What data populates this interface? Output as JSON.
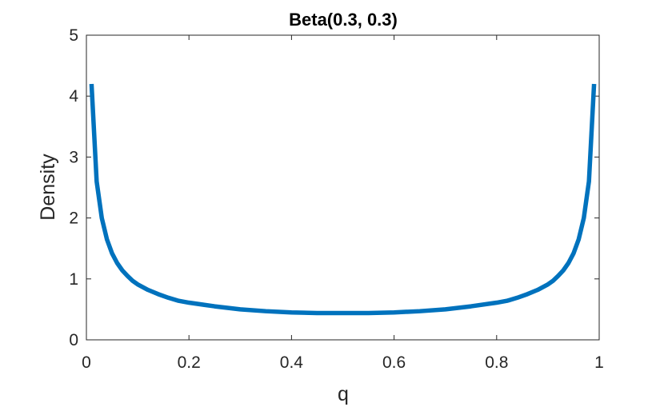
{
  "chart_data": {
    "type": "line",
    "title": "Beta(0.3, 0.3)",
    "xlabel": "q",
    "ylabel": "Density",
    "xlim": [
      0,
      1
    ],
    "ylim": [
      0,
      5
    ],
    "xticks": [
      0,
      0.2,
      0.4,
      0.6,
      0.8,
      1
    ],
    "xtick_labels": [
      "0",
      "0.2",
      "0.4",
      "0.6",
      "0.8",
      "1"
    ],
    "yticks": [
      0,
      1,
      2,
      3,
      4,
      5
    ],
    "ytick_labels": [
      "0",
      "1",
      "2",
      "3",
      "4",
      "5"
    ],
    "grid": false,
    "box": true,
    "series": [
      {
        "color": "#0072BD",
        "x": [
          0.01,
          0.02,
          0.03,
          0.04,
          0.05,
          0.06,
          0.07,
          0.08,
          0.09,
          0.1,
          0.12,
          0.14,
          0.16,
          0.18,
          0.2,
          0.25,
          0.3,
          0.35,
          0.4,
          0.45,
          0.5,
          0.55,
          0.6,
          0.65,
          0.7,
          0.75,
          0.8,
          0.82,
          0.84,
          0.86,
          0.88,
          0.9,
          0.91,
          0.92,
          0.93,
          0.94,
          0.95,
          0.96,
          0.97,
          0.98,
          0.99
        ],
        "y": [
          4.2,
          2.6,
          2.0,
          1.65,
          1.42,
          1.26,
          1.14,
          1.05,
          0.97,
          0.91,
          0.82,
          0.75,
          0.69,
          0.64,
          0.61,
          0.55,
          0.5,
          0.47,
          0.45,
          0.44,
          0.44,
          0.44,
          0.45,
          0.47,
          0.5,
          0.55,
          0.61,
          0.64,
          0.69,
          0.75,
          0.82,
          0.91,
          0.97,
          1.05,
          1.14,
          1.26,
          1.42,
          1.65,
          2.0,
          2.6,
          4.2
        ]
      }
    ]
  }
}
